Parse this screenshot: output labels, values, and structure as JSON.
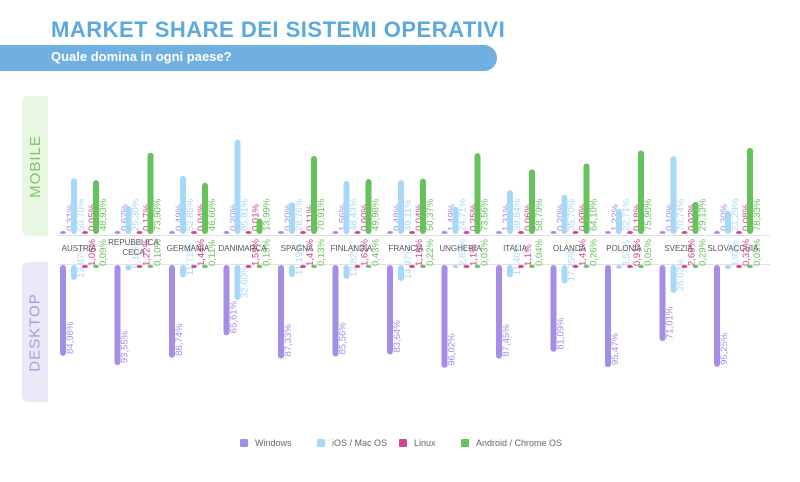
{
  "header": {
    "title": "MARKET SHARE DEI SISTEMI OPERATIVI",
    "subtitle": "Quale domina in ogni paese?"
  },
  "sections": {
    "mobile": "MOBILE",
    "desktop": "DESKTOP"
  },
  "colors": {
    "Windows": "#a58ee6",
    "iOS / Mac OS": "#a8d8f8",
    "Linux": "#d0468d",
    "Android / Chrome OS": "#66c25a"
  },
  "chart_data": {
    "type": "bar",
    "title": "MARKET SHARE DEI SISTEMI OPERATIVI",
    "subtitle": "Quale domina in ogni paese?",
    "categories": [
      "AUSTRIA",
      "REPUBBLICA CECA",
      "GERMANIA",
      "DANIMARCA",
      "SPAGNA",
      "FINLANDIA",
      "FRANCIA",
      "UNGHERIA",
      "ITALIA",
      "OLANDA",
      "POLONIA",
      "SVEZIA",
      "SLOVACCHIA"
    ],
    "legend": [
      "Windows",
      "iOS / Mac OS",
      "Linux",
      "Android / Chrome OS"
    ],
    "legend_position": "bottom",
    "mobile": {
      "series": [
        {
          "name": "Windows",
          "values": [
            0.31,
            0.62,
            0.49,
            0.2,
            0.2,
            1.56,
            0.48,
            1.49,
            1.31,
            0.2,
            1.22,
            0.1,
            0.3
          ],
          "labels": [
            "0,31%",
            "0,62%",
            "0,49%",
            "0,20%",
            "0,20%",
            "1,56%",
            "0,48%",
            "1,49%",
            "1,31%",
            "0,20%",
            "1,22%",
            "0,10%",
            "0,30%"
          ]
        },
        {
          "name": "iOS / Mac OS",
          "values": [
            50.7,
            25.3,
            52.85,
            85.81,
            28.76,
            48.43,
            49.11,
            24.71,
            39.84,
            35.7,
            22.71,
            70.74,
            21.29
          ],
          "labels": [
            "50,70%",
            "25,30%",
            "52,85%",
            "85,81%",
            "28,76%",
            "48,43%",
            "49,11%",
            "24,71%",
            "39,84%",
            "35,70%",
            "22,71%",
            "70,74%",
            "21,29%"
          ]
        },
        {
          "name": "Linux",
          "values": [
            0.05,
            0.17,
            0.04,
            0.01,
            0.11,
            0.0,
            0.04,
            0.25,
            0.06,
            0.0,
            0.18,
            0.02,
            0.08
          ],
          "labels": [
            "0,05%",
            "0,17%",
            "0,04%",
            "0,01%",
            "0,11%",
            "0,00%",
            "0,04%",
            "0,25%",
            "0,06%",
            "0,00%",
            "0,18%",
            "0,02%",
            "0,08%"
          ]
        },
        {
          "name": "Android / Chrome OS",
          "values": [
            48.93,
            73.9,
            46.6,
            13.99,
            70.91,
            49.98,
            50.37,
            73.56,
            58.79,
            64.1,
            75.9,
            29.13,
            78.33
          ],
          "labels": [
            "48,93%",
            "73,90%",
            "46,60%",
            "13,99%",
            "70,91%",
            "49,98%",
            "50,37%",
            "73,56%",
            "58,79%",
            "64,10%",
            "75,90%",
            "29,13%",
            "78,33%"
          ]
        }
      ]
    },
    "desktop": {
      "series": [
        {
          "name": "Windows",
          "values": [
            84.98,
            93.55,
            86.74,
            65.61,
            87.33,
            85.56,
            83.64,
            96.02,
            87.45,
            81.09,
            95.47,
            71.01,
            95.25
          ],
          "labels": [
            "84,98%",
            "93,55%",
            "86,74%",
            "65,61%",
            "87,33%",
            "85,56%",
            "83,64%",
            "96,02%",
            "87,45%",
            "81,09%",
            "95,47%",
            "71,01%",
            "95,25%"
          ]
        },
        {
          "name": "iOS / Mac OS",
          "values": [
            13.87,
            5.12,
            11.71,
            32.6,
            11.19,
            12.82,
            14.97,
            2.85,
            11.4,
            17.25,
            3.57,
            26.03,
            3.92
          ],
          "labels": [
            "13,87%",
            "5,12%",
            "11,71%",
            "32,60%",
            "11,19%",
            "12,82%",
            "14,97%",
            "2,85%",
            "11,40%",
            "17,25%",
            "3,57%",
            "26,03%",
            "3,92%"
          ]
        },
        {
          "name": "Linux",
          "values": [
            1.06,
            1.22,
            1.44,
            1.59,
            1.47,
            1.62,
            1.16,
            1.1,
            1.1,
            1.41,
            0.91,
            2.66,
            0.32
          ],
          "labels": [
            "1,06%",
            "1,22%",
            "1,44%",
            "1,59%",
            "1,47%",
            "1,62%",
            "1,16%",
            "1,1%",
            "1,1%",
            "1,41%",
            "0,91%",
            "2,66%",
            "0,32%"
          ]
        },
        {
          "name": "Android / Chrome OS",
          "values": [
            0.09,
            0.1,
            0.11,
            0.19,
            0.13,
            0.43,
            0.22,
            0.03,
            0.04,
            0.26,
            0.05,
            0.29,
            0.05
          ],
          "labels": [
            "0,09%",
            "0,10%",
            "0,11%",
            "0,19%",
            "0,13%",
            "0,43%",
            "0,22%",
            "0,03%",
            "0,04%",
            "0,26%",
            "0,05%",
            "0,29%",
            "0,05%"
          ]
        }
      ]
    },
    "ylim": [
      0,
      100
    ]
  }
}
